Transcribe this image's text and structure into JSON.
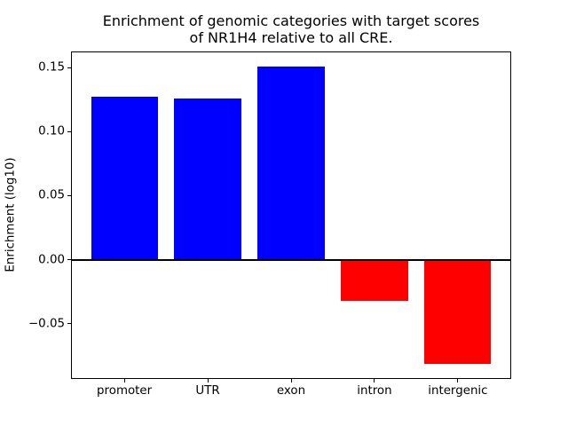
{
  "chart_data": {
    "type": "bar",
    "title": "Enrichment of genomic categories with target scores of NR1H4 relative to all CRE.",
    "title_lines": [
      "Enrichment of genomic categories with target scores",
      "of NR1H4 relative to all CRE."
    ],
    "xlabel": "",
    "ylabel": "Enrichment (log10)",
    "categories": [
      "promoter",
      "UTR",
      "exon",
      "intron",
      "intergenic"
    ],
    "values": [
      0.127,
      0.126,
      0.151,
      -0.032,
      -0.081
    ],
    "positive_color": "#0000ff",
    "negative_color": "#ff0000",
    "ylim": [
      -0.093,
      0.1625
    ],
    "xlim": [
      -0.64,
      4.64
    ],
    "bar_width": 0.8,
    "yticks": [
      {
        "value": 0.15,
        "label": "0.15"
      },
      {
        "value": 0.1,
        "label": "0.10"
      },
      {
        "value": 0.05,
        "label": "0.05"
      },
      {
        "value": 0.0,
        "label": "0.00"
      },
      {
        "value": -0.05,
        "label": "−0.05"
      }
    ],
    "grid": false,
    "legend": null,
    "zero_line": true
  }
}
